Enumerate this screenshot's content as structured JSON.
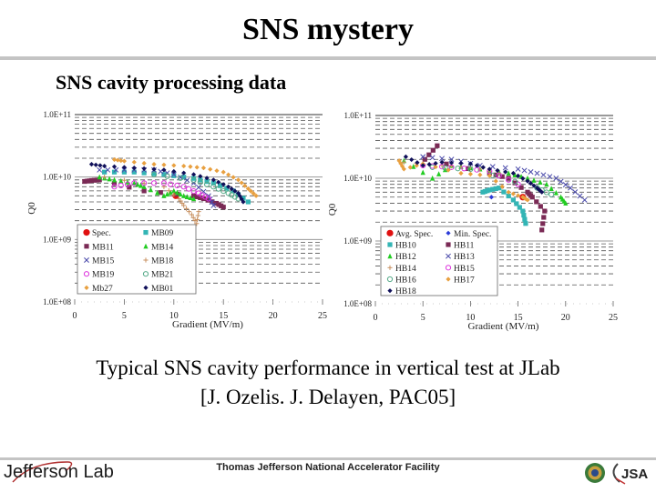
{
  "slide": {
    "title": "SNS mystery",
    "subtitle": "SNS cavity processing data",
    "caption_line1": "Typical SNS cavity performance in vertical test at JLab",
    "caption_line2": "[J. Ozelis. J. Delayen, PAC05]"
  },
  "footer": {
    "left_logo_text": "Jefferson Lab",
    "center_text": "Thomas Jefferson National Accelerator Facility",
    "right_logo_text": "JSA",
    "colors": {
      "rule": "#c4c4c4"
    }
  },
  "chart_data": [
    {
      "type": "scatter",
      "title": "",
      "xlabel": "Gradient (MV/m)",
      "ylabel": "Q0",
      "xlim": [
        0,
        25
      ],
      "ylim": [
        100000000.0,
        100000000000.0
      ],
      "yscale": "log",
      "x_ticks": [
        "0",
        "5",
        "10",
        "15",
        "20",
        "25"
      ],
      "y_ticks": [
        "1.0E+08",
        "1.0E+09",
        "1.0E+10",
        "1.0E+11"
      ],
      "grid": "dashed minor log gridlines",
      "legend_position": "lower-left",
      "series": [
        {
          "name": "Spec.",
          "color": "#e01010",
          "marker": "circle",
          "points": [
            [
              10.2,
              5000000000.0
            ]
          ]
        },
        {
          "name": "MB09",
          "color": "#33b5b5",
          "marker": "square",
          "points": [
            [
              3,
              12000000000.0
            ],
            [
              6,
              12000000000.0
            ],
            [
              9,
              11000000000.0
            ],
            [
              12,
              9500000000.0
            ],
            [
              14,
              8000000000.0
            ],
            [
              16,
              6000000000.0
            ],
            [
              17.5,
              4000000000.0
            ]
          ]
        },
        {
          "name": "MB11",
          "color": "#7a2a55",
          "marker": "square",
          "points": [
            [
              1,
              8500000000.0
            ],
            [
              1.7,
              8800000000.0
            ],
            [
              2.5,
              9000000000.0
            ],
            [
              7,
              6000000000.0
            ],
            [
              12,
              5000000000.0
            ],
            [
              13,
              4500000000.0
            ],
            [
              14.3,
              3800000000.0
            ],
            [
              15,
              3300000000.0
            ]
          ]
        },
        {
          "name": "MB14",
          "color": "#22cc22",
          "marker": "triangle",
          "points": [
            [
              2.5,
              10000000000.0
            ],
            [
              4,
              9000000000.0
            ],
            [
              6,
              8000000000.0
            ],
            [
              7,
              7000000000.0
            ],
            [
              9,
              5000000000.0
            ],
            [
              10,
              6000000000.0
            ],
            [
              11,
              5000000000.0
            ],
            [
              12,
              4500000000.0
            ]
          ]
        },
        {
          "name": "MB15",
          "color": "#4a4aaa",
          "marker": "x",
          "points": [
            [
              2.5,
              13000000000.0
            ],
            [
              5,
              13000000000.0
            ],
            [
              8,
              13000000000.0
            ],
            [
              10,
              11000000000.0
            ],
            [
              12,
              8000000000.0
            ],
            [
              13.5,
              5000000000.0
            ],
            [
              14,
              3500000000.0
            ]
          ]
        },
        {
          "name": "MB18",
          "color": "#c89060",
          "marker": "plus",
          "points": [
            [
              3,
              10000000000.0
            ],
            [
              9,
              7000000000.0
            ],
            [
              10.5,
              4500000000.0
            ],
            [
              11,
              3500000000.0
            ],
            [
              11.8,
              2500000000.0
            ],
            [
              12.3,
              1800000000.0
            ],
            [
              12.5,
              2800000000.0
            ]
          ]
        },
        {
          "name": "MB19",
          "color": "#dd33dd",
          "marker": "circle-open",
          "points": [
            [
              4,
              7000000000.0
            ],
            [
              6,
              8000000000.0
            ],
            [
              9,
              8000000000.0
            ],
            [
              11,
              7000000000.0
            ],
            [
              12.5,
              5500000000.0
            ],
            [
              13.5,
              4500000000.0
            ]
          ]
        },
        {
          "name": "MB21",
          "color": "#55aa88",
          "marker": "circle-open",
          "points": [
            [
              8,
              11000000000.0
            ],
            [
              12,
              9000000000.0
            ],
            [
              14,
              7000000000.0
            ],
            [
              15.5,
              5500000000.0
            ],
            [
              16.5,
              4500000000.0
            ]
          ]
        },
        {
          "name": "Mb27",
          "color": "#e8a040",
          "marker": "diamond",
          "points": [
            [
              4,
              19000000000.0
            ],
            [
              5,
              18000000000.0
            ],
            [
              8,
              16000000000.0
            ],
            [
              11,
              15000000000.0
            ],
            [
              13,
              14000000000.0
            ],
            [
              15,
              12000000000.0
            ],
            [
              16.5,
              9000000000.0
            ],
            [
              17.5,
              6500000000.0
            ],
            [
              18.3,
              5000000000.0
            ]
          ]
        },
        {
          "name": "MB01",
          "color": "#10105a",
          "marker": "diamond",
          "points": [
            [
              1.7,
              16000000000.0
            ],
            [
              3,
              15000000000.0
            ],
            [
              6,
              14000000000.0
            ],
            [
              9,
              13000000000.0
            ],
            [
              12,
              11000000000.0
            ],
            [
              14,
              9000000000.0
            ],
            [
              15.5,
              7000000000.0
            ],
            [
              16.5,
              5500000000.0
            ],
            [
              17,
              4000000000.0
            ]
          ]
        }
      ]
    },
    {
      "type": "scatter",
      "title": "",
      "xlabel": "Gradient (MV/m)",
      "ylabel": "Q0",
      "xlim": [
        0,
        25
      ],
      "ylim": [
        100000000.0,
        100000000000.0
      ],
      "yscale": "log",
      "x_ticks": [
        "0",
        "5",
        "10",
        "15",
        "20",
        "25"
      ],
      "y_ticks": [
        "1.0E+08",
        "1.0E+09",
        "1.0E+10",
        "1.0E+11"
      ],
      "grid": "dashed minor log gridlines",
      "legend_position": "lower-left",
      "series": [
        {
          "name": "Avg. Spec.",
          "color": "#e01010",
          "marker": "circle",
          "points": [
            [
              15.5,
              5000000000.0
            ]
          ]
        },
        {
          "name": "Min. Spec.",
          "color": "#2a3ad8",
          "marker": "diamond",
          "points": [
            [
              12.2,
              5000000000.0
            ]
          ]
        },
        {
          "name": "HB10",
          "color": "#33b5b5",
          "marker": "square",
          "points": [
            [
              11.3,
              6000000000.0
            ],
            [
              12,
              6500000000.0
            ],
            [
              13,
              7000000000.0
            ],
            [
              14.5,
              4500000000.0
            ],
            [
              15.5,
              3000000000.0
            ],
            [
              15.8,
              1900000000.0
            ]
          ]
        },
        {
          "name": "HB11",
          "color": "#7a2a55",
          "marker": "square",
          "points": [
            [
              6.5,
              33000000000.0
            ],
            [
              5.2,
              20000000000.0
            ],
            [
              12,
              12000000000.0
            ],
            [
              14,
              10000000000.0
            ],
            [
              16,
              6000000000.0
            ],
            [
              16.5,
              5000000000.0
            ],
            [
              17.8,
              3000000000.0
            ],
            [
              17.5,
              1500000000.0
            ]
          ]
        },
        {
          "name": "HB12",
          "color": "#22cc22",
          "marker": "triangle",
          "points": [
            [
              3,
              19000000000.0
            ],
            [
              6,
              10000000000.0
            ],
            [
              8,
              16000000000.0
            ],
            [
              11,
              14000000000.0
            ],
            [
              14,
              12000000000.0
            ],
            [
              16,
              10000000000.0
            ],
            [
              18,
              8000000000.0
            ],
            [
              19.5,
              5000000000.0
            ],
            [
              20,
              4000000000.0
            ]
          ]
        },
        {
          "name": "HB13",
          "color": "#4a4aaa",
          "marker": "x",
          "points": [
            [
              5,
              22000000000.0
            ],
            [
              8,
              20000000000.0
            ],
            [
              11,
              16000000000.0
            ],
            [
              15,
              14000000000.0
            ],
            [
              17,
              12000000000.0
            ],
            [
              19,
              10000000000.0
            ],
            [
              20.5,
              7000000000.0
            ],
            [
              22,
              4500000000.0
            ]
          ]
        },
        {
          "name": "HB14",
          "color": "#c89060",
          "marker": "plus",
          "points": [
            [
              3,
              18000000000.0
            ],
            [
              7,
              16000000000.0
            ],
            [
              10,
              15000000000.0
            ],
            [
              13,
              12000000000.0
            ]
          ]
        },
        {
          "name": "HB15",
          "color": "#dd33dd",
          "marker": "circle-open",
          "points": [
            [
              5,
              16000000000.0
            ],
            [
              8,
              15000000000.0
            ],
            [
              12,
              13000000000.0
            ],
            [
              15,
              8000000000.0
            ]
          ]
        },
        {
          "name": "HB16",
          "color": "#55aa88",
          "marker": "circle-open",
          "points": [
            [
              6,
              15000000000.0
            ],
            [
              10,
              14000000000.0
            ],
            [
              17,
              7000000000.0
            ],
            [
              18.5,
              5500000000.0
            ]
          ]
        },
        {
          "name": "HB17",
          "color": "#e8a040",
          "marker": "diamond",
          "points": [
            [
              2.5,
              19000000000.0
            ],
            [
              3,
              14000000000.0
            ],
            [
              5,
              17000000000.0
            ],
            [
              9,
              12000000000.0
            ],
            [
              12,
              11000000000.0
            ],
            [
              14,
              6000000000.0
            ],
            [
              15.5,
              5000000000.0
            ],
            [
              16,
              4500000000.0
            ]
          ]
        },
        {
          "name": "HB18",
          "color": "#10105a",
          "marker": "diamond",
          "points": [
            [
              3.2,
              22000000000.0
            ],
            [
              5,
              16000000000.0
            ],
            [
              7,
              18000000000.0
            ],
            [
              10,
              17000000000.0
            ],
            [
              12,
              14000000000.0
            ],
            [
              14.5,
              12000000000.0
            ],
            [
              16,
              9000000000.0
            ],
            [
              17,
              7000000000.0
            ],
            [
              17.5,
              6000000000.0
            ]
          ]
        }
      ]
    }
  ]
}
